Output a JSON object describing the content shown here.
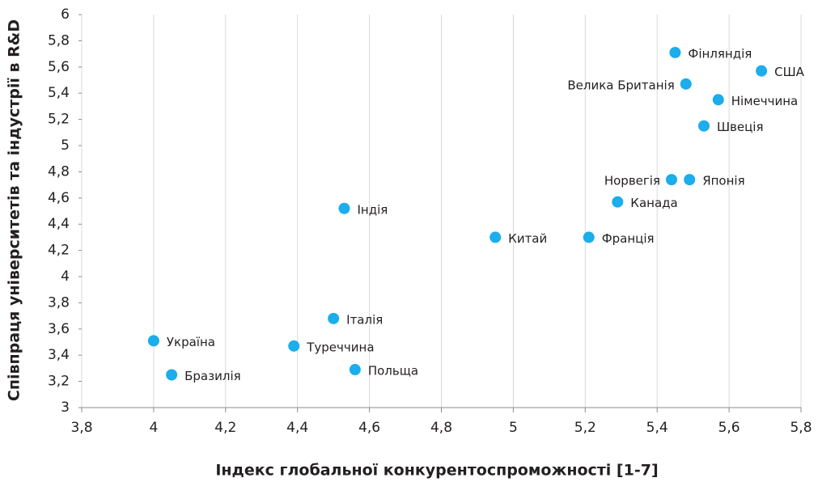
{
  "chart_data": {
    "type": "scatter",
    "x_label": "Індекс глобальної конкурентоспроможності [1-7]",
    "y_label": "Співпраця університетів та індустрії в R&D",
    "labels": [
      "Фінляндія",
      "США",
      "Велика Британія",
      "Німеччина",
      "Швеція",
      "Норвегія",
      "Японія",
      "Канада",
      "Індія",
      "Китай",
      "Франція",
      "Італія",
      "Україна",
      "Туреччина",
      "Бразилія",
      "Польща"
    ],
    "x": [
      5.45,
      5.69,
      5.48,
      5.57,
      5.53,
      5.44,
      5.49,
      5.29,
      4.53,
      4.95,
      5.21,
      4.5,
      4.0,
      4.39,
      4.05,
      4.56
    ],
    "values": [
      5.71,
      5.57,
      5.47,
      5.35,
      5.15,
      4.74,
      4.74,
      4.57,
      4.52,
      4.3,
      4.3,
      3.68,
      3.51,
      3.47,
      3.25,
      3.29
    ],
    "color": "#1badec",
    "xlim": [
      3.8,
      5.8
    ],
    "xticks": [
      {
        "value": 3.8,
        "label": "3,8"
      },
      4,
      {
        "value": 4.2,
        "label": "4,2"
      },
      {
        "value": 4.4,
        "label": "4,4"
      },
      {
        "value": 4.6,
        "label": "4,6"
      },
      {
        "value": 4.8,
        "label": "4,8"
      },
      5,
      {
        "value": 5.2,
        "label": "5,2"
      },
      {
        "value": 5.4,
        "label": "5,4"
      },
      {
        "value": 5.6,
        "label": "5,6"
      },
      {
        "value": 5.8,
        "label": "5,8"
      }
    ],
    "ylim": [
      3,
      6
    ],
    "yticks": [
      3,
      {
        "value": 3.2,
        "label": "3,2"
      },
      {
        "value": 3.4,
        "label": "3,4"
      },
      {
        "value": 3.6,
        "label": "3,6"
      },
      {
        "value": 3.8,
        "label": "3,8"
      },
      4,
      {
        "value": 4.2,
        "label": "4,2"
      },
      {
        "value": 4.4,
        "label": "4,4"
      },
      {
        "value": 4.6,
        "label": "4,6"
      },
      {
        "value": 4.8,
        "label": "4,8"
      },
      5,
      {
        "value": 5.2,
        "label": "5,2"
      },
      {
        "value": 5.4,
        "label": "5,4"
      },
      {
        "value": 5.6,
        "label": "5,6"
      },
      {
        "value": 5.8,
        "label": "5,8"
      },
      6
    ],
    "grid": true
  }
}
